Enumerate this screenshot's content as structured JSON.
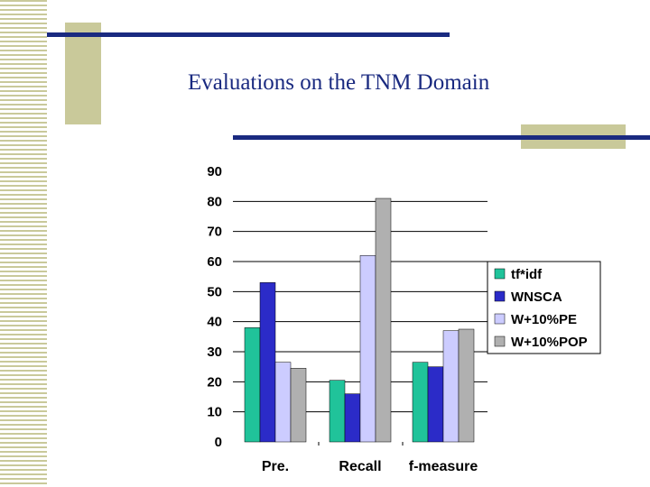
{
  "slide": {
    "title": "Evaluations  on the TNM Domain",
    "colors": {
      "accent": "#1a2a80",
      "deco": "#c9c99a"
    }
  },
  "chart_data": {
    "type": "bar",
    "categories": [
      "Pre.",
      "Recall",
      "f-measure"
    ],
    "series": [
      {
        "name": "tf*idf",
        "color": "#20c39a",
        "values": [
          38,
          20.5,
          26.5
        ]
      },
      {
        "name": "WNSCA",
        "color": "#2b2bc8",
        "values": [
          53,
          16,
          25
        ]
      },
      {
        "name": "W+10%PE",
        "color": "#ccccff",
        "values": [
          26.5,
          62,
          37
        ]
      },
      {
        "name": "W+10%POP",
        "color": "#b0b0b0",
        "values": [
          24.5,
          81,
          37.5
        ]
      }
    ],
    "ylim": [
      0,
      90
    ],
    "yticks": [
      0,
      10,
      20,
      30,
      40,
      50,
      60,
      70,
      80,
      90
    ],
    "grid": true,
    "legend_position": "right"
  }
}
